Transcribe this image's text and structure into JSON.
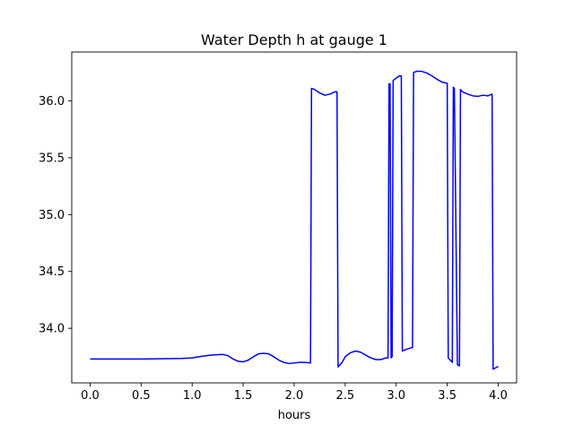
{
  "chart_data": {
    "type": "line",
    "title": "Water Depth h at gauge 1",
    "xlabel": "hours",
    "ylabel": "",
    "xlim": [
      -0.18,
      4.18
    ],
    "ylim": [
      33.52,
      36.43
    ],
    "xticks": [
      0.0,
      0.5,
      1.0,
      1.5,
      2.0,
      2.5,
      3.0,
      3.5,
      4.0
    ],
    "xtick_labels": [
      "0.0",
      "0.5",
      "1.0",
      "1.5",
      "2.0",
      "2.5",
      "3.0",
      "3.5",
      "4.0"
    ],
    "yticks": [
      34.0,
      34.5,
      35.0,
      35.5,
      36.0
    ],
    "ytick_labels": [
      "34.0",
      "34.5",
      "35.0",
      "35.5",
      "36.0"
    ],
    "grid": false,
    "legend": "none",
    "series": [
      {
        "color": "#0000ff",
        "x": [
          0.0,
          0.5,
          0.9,
          1.0,
          1.1,
          1.2,
          1.3,
          1.35,
          1.4,
          1.45,
          1.5,
          1.55,
          1.6,
          1.65,
          1.7,
          1.75,
          1.8,
          1.85,
          1.9,
          1.95,
          2.0,
          2.05,
          2.1,
          2.16,
          2.17,
          2.2,
          2.25,
          2.3,
          2.35,
          2.4,
          2.42,
          2.43,
          2.47,
          2.5,
          2.55,
          2.6,
          2.65,
          2.7,
          2.75,
          2.8,
          2.85,
          2.9,
          2.92,
          2.93,
          2.94,
          2.95,
          2.96,
          2.97,
          3.0,
          3.03,
          3.05,
          3.06,
          3.1,
          3.15,
          3.16,
          3.17,
          3.2,
          3.25,
          3.3,
          3.35,
          3.4,
          3.45,
          3.5,
          3.51,
          3.52,
          3.55,
          3.56,
          3.57,
          3.6,
          3.62,
          3.63,
          3.65,
          3.7,
          3.75,
          3.8,
          3.85,
          3.9,
          3.94,
          3.95,
          4.0
        ],
        "y": [
          33.73,
          33.73,
          33.735,
          33.74,
          33.755,
          33.765,
          33.77,
          33.76,
          33.73,
          33.71,
          33.705,
          33.72,
          33.75,
          33.775,
          33.78,
          33.775,
          33.75,
          33.72,
          33.7,
          33.69,
          33.695,
          33.7,
          33.7,
          33.695,
          36.11,
          36.1,
          36.07,
          36.05,
          36.06,
          36.08,
          36.08,
          33.66,
          33.7,
          33.75,
          33.785,
          33.8,
          33.79,
          33.765,
          33.74,
          33.725,
          33.725,
          33.74,
          33.74,
          36.15,
          36.15,
          33.74,
          33.75,
          36.18,
          36.2,
          36.22,
          36.22,
          33.8,
          33.815,
          33.83,
          33.83,
          36.25,
          36.26,
          36.26,
          36.245,
          36.22,
          36.19,
          36.165,
          36.155,
          33.74,
          33.73,
          33.7,
          36.12,
          36.11,
          33.68,
          33.67,
          36.1,
          36.08,
          36.06,
          36.045,
          36.04,
          36.05,
          36.045,
          36.06,
          33.64,
          33.665
        ]
      }
    ]
  }
}
